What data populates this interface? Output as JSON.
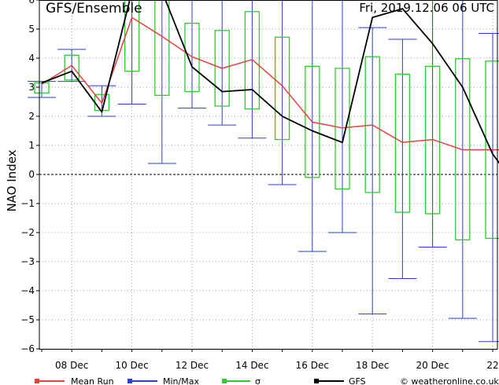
{
  "header": {
    "title_left": "GFS/Ensemble",
    "title_right": "Fri, 2019.12.06   06 UTC"
  },
  "legend": [
    {
      "label": "Mean Run",
      "color": "#e8413b"
    },
    {
      "label": "Min/Max",
      "color": "#2a3fd6"
    },
    {
      "label": "σ",
      "color": "#2ecc2e"
    },
    {
      "label": "GFS",
      "color": "#000000"
    }
  ],
  "credit": "© weatheronline.co.uk",
  "chart_data": {
    "type": "line",
    "ylabel": "NAO Index",
    "ylim": [
      -6,
      6
    ],
    "yticks": [
      -6,
      -5,
      -4,
      -3,
      -2,
      -1,
      0,
      1,
      2,
      3,
      4,
      5,
      6
    ],
    "xlim": [
      0,
      15.5
    ],
    "xtick_labels": [
      {
        "x": 1,
        "label": "08 Dec"
      },
      {
        "x": 3,
        "label": "10 Dec"
      },
      {
        "x": 5,
        "label": "12 Dec"
      },
      {
        "x": 7,
        "label": "14 Dec"
      },
      {
        "x": 9,
        "label": "16 Dec"
      },
      {
        "x": 11,
        "label": "18 Dec"
      },
      {
        "x": 13,
        "label": "20 Dec"
      },
      {
        "x": 15,
        "label": "22"
      }
    ],
    "grid": true,
    "zero_line": true,
    "x": [
      0,
      1,
      2,
      3,
      4,
      5,
      6,
      7,
      8,
      9,
      10,
      11,
      12,
      13,
      14,
      15,
      15.5
    ],
    "series": [
      {
        "name": "Mean Run",
        "color": "#e8413b",
        "values": [
          3.1,
          3.75,
          2.45,
          5.4,
          4.75,
          4.05,
          3.65,
          3.95,
          3.05,
          1.8,
          1.6,
          1.7,
          1.1,
          1.2,
          0.85,
          0.85,
          0.85
        ]
      },
      {
        "name": "GFS",
        "color": "#000000",
        "values": [
          3.15,
          3.55,
          2.15,
          6.3,
          6.3,
          3.7,
          2.85,
          2.92,
          2.0,
          1.5,
          1.1,
          5.4,
          5.7,
          4.5,
          3.0,
          0.7,
          0.0
        ]
      }
    ],
    "sigma": [
      {
        "x": 0,
        "low": 2.8,
        "high": 3.15
      },
      {
        "x": 1,
        "low": 3.25,
        "high": 4.1
      },
      {
        "x": 2,
        "low": 2.2,
        "high": 2.75
      },
      {
        "x": 3,
        "low": 3.55,
        "high": 6.5
      },
      {
        "x": 4,
        "low": 2.72,
        "high": 6.5
      },
      {
        "x": 5,
        "low": 2.85,
        "high": 5.2
      },
      {
        "x": 6,
        "low": 2.35,
        "high": 4.95
      },
      {
        "x": 7,
        "low": 2.25,
        "high": 5.6
      },
      {
        "x": 8,
        "low": 1.2,
        "high": 4.72
      },
      {
        "x": 9,
        "low": -0.1,
        "high": 3.72
      },
      {
        "x": 10,
        "low": -0.5,
        "high": 3.65
      },
      {
        "x": 11,
        "low": -0.62,
        "high": 4.05
      },
      {
        "x": 12,
        "low": -1.3,
        "high": 3.45
      },
      {
        "x": 13,
        "low": -1.35,
        "high": 3.72
      },
      {
        "x": 14,
        "low": -2.25,
        "high": 3.98
      },
      {
        "x": 15,
        "low": -2.2,
        "high": 3.9
      }
    ],
    "minmax": [
      {
        "x": 0,
        "min": 2.65,
        "max": 3.2
      },
      {
        "x": 1,
        "min": 3.2,
        "max": 4.3
      },
      {
        "x": 2,
        "min": 2.0,
        "max": 3.05
      },
      {
        "x": 3,
        "min": 2.42,
        "max": 6.5
      },
      {
        "x": 4,
        "min": 0.38,
        "max": 6.5
      },
      {
        "x": 5,
        "min": 2.28,
        "max": 6.5
      },
      {
        "x": 6,
        "min": 1.7,
        "max": 6.5
      },
      {
        "x": 7,
        "min": 1.25,
        "max": 6.5
      },
      {
        "x": 8,
        "min": -0.35,
        "max": 6.5
      },
      {
        "x": 9,
        "min": -2.65,
        "max": 6.5
      },
      {
        "x": 10,
        "min": -2.0,
        "max": 6.5
      },
      {
        "x": 11,
        "min": -4.8,
        "max": 5.05
      },
      {
        "x": 12,
        "min": -3.58,
        "max": 4.65
      },
      {
        "x": 13,
        "min": -2.5,
        "max": 6.5
      },
      {
        "x": 14,
        "min": -4.95,
        "max": 6.5
      },
      {
        "x": 15,
        "min": -5.75,
        "max": 4.85
      }
    ]
  }
}
